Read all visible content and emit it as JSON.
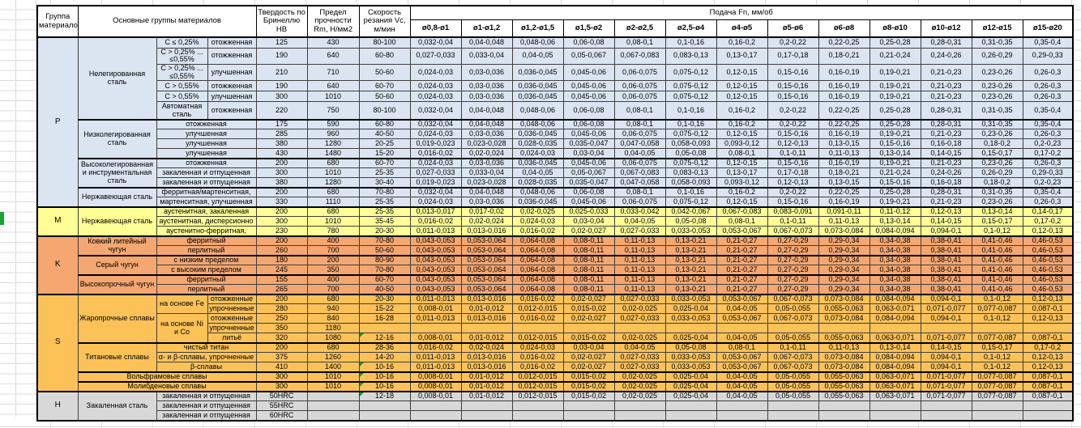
{
  "colors": {
    "groups": {
      "P": "#dbe5f1",
      "M": "#ffff96",
      "K": "#f4a770",
      "S": "#fcc258",
      "H": "#d8d8d8"
    },
    "comment_marker_green": "#0f9d2a",
    "left_gutter_green_fragment": "#18a335"
  },
  "table": {
    "header": {
      "col_group": "Группа материалов",
      "col_main": "Основные группы материалов",
      "col_hardness": "Твердость по Бринеллю НВ",
      "col_strength": "Предел прочности Rm, Н/мм2",
      "col_speed": "Скорость резания Vc, м/мин",
      "feed_title": "Подача Fn, мм/об",
      "feed_cols": [
        "ø0,8-ø1",
        "ø1-ø1,2",
        "ø1,2-ø1,5",
        "ø1,5-ø2",
        "ø2-ø2,5",
        "ø2,5-ø4",
        "ø4-ø5",
        "ø5-ø6",
        "ø6-ø8",
        "ø8-ø10",
        "ø10-ø12",
        "ø12-ø15",
        "ø15-ø20"
      ]
    },
    "feed_patterns": {
      "A": [
        "0,032-0,04",
        "0,04-0,048",
        "0,048-0,06",
        "0,06-0,08",
        "0,08-0,1",
        "0,1-0,16",
        "0,16-0,2",
        "0,2-0,22",
        "0,22-0,25",
        "0,25-0,28",
        "0,28-0,31",
        "0,31-0,35",
        "0,35-0,4"
      ],
      "B": [
        "0,027-0,033",
        "0,033-0,04",
        "0,04-0,05",
        "0,05-0,067",
        "0,067-0,083",
        "0,083-0,13",
        "0,13-0,17",
        "0,17-0,18",
        "0,18-0,21",
        "0,21-0,24",
        "0,24-0,26",
        "0,26-0,29",
        "0,29-0,33"
      ],
      "C": [
        "0,024-0,03",
        "0,03-0,036",
        "0,036-0,045",
        "0,045-0,06",
        "0,06-0,075",
        "0,075-0,12",
        "0,12-0,15",
        "0,15-0,16",
        "0,16-0,19",
        "0,19-0,21",
        "0,21-0,23",
        "0,23-0,26",
        "0,26-0,3"
      ],
      "D": [
        "0,019-0,023",
        "0,023-0,028",
        "0,028-0,035",
        "0,035-0,047",
        "0,047-0,058",
        "0,058-0,093",
        "0,093-0,12",
        "0,12-0,13",
        "0,13-0,15",
        "0,15-0,16",
        "0,16-0,18",
        "0,18-0,2",
        "0,2-0,23"
      ],
      "E": [
        "0,016-0,02",
        "0,02-0,024",
        "0,024-0,03",
        "0,03-0,04",
        "0,04-0,05",
        "0,05-0,08",
        "0,08-0,1",
        "0,1-0,11",
        "0,11-0,13",
        "0,13-0,14",
        "0,14-0,15",
        "0,15-0,17",
        "0,17-0,2"
      ],
      "F": [
        "0,013-0,017",
        "0,017-0,02",
        "0,02-0,025",
        "0,025-0,033",
        "0,033-0,042",
        "0,042-0,067",
        "0,067-0,083",
        "0,083-0,091",
        "0,091-0,11",
        "0,11-0,12",
        "0,12-0,13",
        "0,13-0,14",
        "0,14-0,17"
      ],
      "G": [
        "0,011-0,013",
        "0,013-0,016",
        "0,016-0,02",
        "0,02-0,027",
        "0,027-0,033",
        "0,033-0,053",
        "0,053-0,067",
        "0,067-0,073",
        "0,073-0,084",
        "0,084-0,094",
        "0,094-0,1",
        "0,1-0,12",
        "0,12-0,13"
      ],
      "H": [
        "0,043-0,053",
        "0,053-0,064",
        "0,064-0,08",
        "0,08-0,11",
        "0,11-0,13",
        "0,13-0,21",
        "0,21-0,27",
        "0,27-0,29",
        "0,29-0,34",
        "0,34-0,38",
        "0,38-0,41",
        "0,41-0,46",
        "0,46-0,53"
      ],
      "I": [
        "0,008-0,01",
        "0,01-0,012",
        "0,012-0,015",
        "0,015-0,02",
        "0,02-0,025",
        "0,025-0,04",
        "0,04-0,05",
        "0,05-0,055",
        "0,055-0,063",
        "0,063-0,071",
        "0,071-0,077",
        "0,077-0,087",
        "0,087-0,1"
      ],
      "X": [
        "",
        "",
        "",
        "",
        "",
        "",
        "",
        "",
        "",
        "",
        "",
        "",
        ""
      ]
    },
    "rows": [
      {
        "g": "P",
        "h": 13,
        "blk": true,
        "cells": [
          [
            "P",
            15,
            1,
            "cell-group-letter"
          ],
          [
            "Нелегированная сталь",
            6,
            1,
            "cell-subgroup"
          ],
          [
            "C ≤ 0,25%",
            1,
            1,
            "cell-variant"
          ],
          [
            "отожженная",
            1,
            1,
            "cell-state"
          ]
        ],
        "hb": "125",
        "rm": "430",
        "vc": "80-100",
        "feed": "A"
      },
      {
        "g": "P",
        "h": 18,
        "cells": [
          [
            "C > 0,25% ... ≤0,55%",
            1,
            1,
            "cell-variant"
          ],
          [
            "отожженная",
            1,
            1,
            "cell-state"
          ]
        ],
        "hb": "190",
        "rm": "640",
        "vc": "60-80",
        "feed": "B"
      },
      {
        "g": "P",
        "h": 18,
        "cells": [
          [
            "C > 0,25% ... ≤0,55%",
            1,
            1,
            "cell-variant"
          ],
          [
            "улучшенная",
            1,
            1,
            "cell-state"
          ]
        ],
        "hb": "210",
        "rm": "710",
        "vc": "50-60",
        "feed": "C"
      },
      {
        "g": "P",
        "h": 13,
        "cells": [
          [
            "C > 0,55%",
            1,
            1,
            "cell-variant"
          ],
          [
            "отожженная",
            1,
            1,
            "cell-state"
          ]
        ],
        "hb": "190",
        "rm": "640",
        "vc": "60-70",
        "feed": "C"
      },
      {
        "g": "P",
        "h": 13,
        "cells": [
          [
            "C > 0,55%",
            1,
            1,
            "cell-variant"
          ],
          [
            "улучшенная",
            1,
            1,
            "cell-state"
          ]
        ],
        "hb": "300",
        "rm": "1010",
        "vc": "50-60",
        "feed": "C"
      },
      {
        "g": "P",
        "h": 22,
        "cells": [
          [
            "Автоматная сталь",
            1,
            1,
            "cell-variant"
          ],
          [
            "отожженная",
            1,
            1,
            "cell-state"
          ]
        ],
        "hb": "220",
        "rm": "750",
        "vc": "80-100",
        "feed": "A"
      },
      {
        "g": "P",
        "h": 12,
        "blk": true,
        "cells": [
          [
            "Низколегированная сталь",
            4,
            1,
            "cell-subgroup"
          ],
          [
            "отожженная",
            1,
            2,
            "cell-state"
          ]
        ],
        "hb": "175",
        "rm": "590",
        "vc": "60-80",
        "feed": "A"
      },
      {
        "g": "P",
        "h": 12,
        "cells": [
          [
            "улучшенная",
            1,
            2,
            "cell-state"
          ]
        ],
        "hb": "285",
        "rm": "960",
        "vc": "40-50",
        "feed": "C"
      },
      {
        "g": "P",
        "h": 12,
        "cells": [
          [
            "улучшенная",
            1,
            2,
            "cell-state"
          ]
        ],
        "hb": "380",
        "rm": "1280",
        "vc": "20-25",
        "feed": "D"
      },
      {
        "g": "P",
        "h": 12,
        "cells": [
          [
            "улучшенная",
            1,
            2,
            "cell-state"
          ]
        ],
        "hb": "430",
        "rm": "1480",
        "vc": "15-20",
        "feed": "E"
      },
      {
        "g": "P",
        "h": 12,
        "blk": true,
        "cells": [
          [
            "Высоколегированная и инструментальная сталь",
            3,
            1,
            "cell-subgroup"
          ],
          [
            "отожженная",
            1,
            2,
            "cell-state"
          ]
        ],
        "hb": "200",
        "rm": "680",
        "vc": "60-70",
        "feed": "C"
      },
      {
        "g": "P",
        "h": 12,
        "cells": [
          [
            "закаленная и отпущенная",
            1,
            2,
            "cell-state"
          ]
        ],
        "hb": "300",
        "rm": "1010",
        "vc": "25-35",
        "feed": "B"
      },
      {
        "g": "P",
        "h": 12,
        "cells": [
          [
            "закаленная и отпущенная",
            1,
            2,
            "cell-state"
          ]
        ],
        "hb": "380",
        "rm": "1280",
        "vc": "30-40",
        "feed": "D"
      },
      {
        "g": "P",
        "h": 12,
        "blk": true,
        "cells": [
          [
            "Нержавеющая сталь",
            2,
            1,
            "cell-subgroup"
          ],
          [
            "ферритная/мартенситная,",
            1,
            2,
            "cell-state"
          ]
        ],
        "hb": "200",
        "rm": "680",
        "vc": "70-80",
        "feed": "A"
      },
      {
        "g": "P",
        "h": 12,
        "cells": [
          [
            "мартенситная, улучшенная",
            1,
            2,
            "cell-state"
          ]
        ],
        "hb": "330",
        "rm": "1110",
        "vc": "25-35",
        "feed": "C"
      },
      {
        "g": "M",
        "h": 12,
        "blk": true,
        "cells": [
          [
            "M",
            3,
            1,
            "cell-group-letter"
          ],
          [
            "Нержавеющая сталь",
            3,
            1,
            "cell-subgroup"
          ],
          [
            "аустенитная, закаленная",
            1,
            2,
            "cell-state"
          ]
        ],
        "hb": "200",
        "rm": "680",
        "vc": "25-35",
        "feed": "F"
      },
      {
        "g": "M",
        "h": 12,
        "cells": [
          [
            "аустенитная, дисперсионно",
            1,
            2,
            "cell-state"
          ]
        ],
        "hb": "300",
        "rm": "1010",
        "vc": "35-45",
        "feed": "E"
      },
      {
        "g": "M",
        "h": 12,
        "cells": [
          [
            "аустенитно-ферритная,",
            1,
            2,
            "cell-state"
          ]
        ],
        "hb": "230",
        "rm": "780",
        "vc": "20-30",
        "feed": "G"
      },
      {
        "g": "K",
        "h": 12,
        "blk": true,
        "cells": [
          [
            "K",
            6,
            1,
            "cell-group-letter"
          ],
          [
            "Ковкий литейный чугун",
            2,
            1,
            "cell-subgroup"
          ],
          [
            "ферритный",
            1,
            2,
            "cell-state"
          ]
        ],
        "hb": "200",
        "rm": "400",
        "vc": "70-80",
        "feed": "H"
      },
      {
        "g": "K",
        "h": 12,
        "cells": [
          [
            "перлитный",
            1,
            2,
            "cell-state"
          ]
        ],
        "hb": "260",
        "rm": "700",
        "vc": "50-60",
        "feed": "H"
      },
      {
        "g": "K",
        "h": 12,
        "blk": true,
        "cells": [
          [
            "Серый чугун",
            2,
            1,
            "cell-subgroup"
          ],
          [
            "с низким пределом",
            1,
            2,
            "cell-state"
          ]
        ],
        "hb": "180",
        "rm": "200",
        "vc": "80-90",
        "feed": "H"
      },
      {
        "g": "K",
        "h": 12,
        "cells": [
          [
            "с высоким пределом",
            1,
            2,
            "cell-state"
          ]
        ],
        "hb": "245",
        "rm": "350",
        "vc": "70-80",
        "feed": "H"
      },
      {
        "g": "K",
        "h": 12,
        "blk": true,
        "cells": [
          [
            "Высокопрочный чугун",
            2,
            1,
            "cell-subgroup"
          ],
          [
            "ферритный",
            1,
            2,
            "cell-state"
          ]
        ],
        "hb": "155",
        "rm": "400",
        "vc": "60-70",
        "feed": "H"
      },
      {
        "g": "K",
        "h": 12,
        "cells": [
          [
            "перлитный",
            1,
            2,
            "cell-state"
          ]
        ],
        "hb": "265",
        "rm": "700",
        "vc": "40-50",
        "feed": "H"
      },
      {
        "g": "S",
        "h": 12,
        "blk": true,
        "cells": [
          [
            "S",
            10,
            1,
            "cell-group-letter"
          ],
          [
            "Жаропрочные сплавы",
            5,
            1,
            "cell-subgroup"
          ],
          [
            "на основе Fe",
            2,
            1,
            "cell-variant"
          ],
          [
            "отожженные",
            1,
            1,
            "cell-state"
          ]
        ],
        "hb": "200",
        "rm": "680",
        "vc": "20-30",
        "feed": "G"
      },
      {
        "g": "S",
        "h": 12,
        "cells": [
          [
            "упрочненные",
            1,
            1,
            "cell-state"
          ]
        ],
        "hb": "280",
        "rm": "940",
        "vc": "15-22",
        "feed": "I"
      },
      {
        "g": "S",
        "h": 12,
        "cells": [
          [
            "на основе Ni и Co",
            3,
            1,
            "cell-variant"
          ],
          [
            "отожженные",
            1,
            1,
            "cell-state"
          ]
        ],
        "hb": "250",
        "rm": "840",
        "vc": "16-28",
        "feed": "G"
      },
      {
        "g": "S",
        "h": 12,
        "cells": [
          [
            "упрочненные",
            1,
            1,
            "cell-state"
          ]
        ],
        "hb": "350",
        "rm": "1180",
        "vc": "",
        "feed": "X"
      },
      {
        "g": "S",
        "h": 12,
        "cells": [
          [
            "литьё",
            1,
            1,
            "cell-state"
          ]
        ],
        "hb": "320",
        "rm": "1080",
        "vc": "12-16",
        "feed": "I",
        "mark": true
      },
      {
        "g": "S",
        "h": 12,
        "blk": true,
        "cells": [
          [
            "Титановые сплавы",
            3,
            1,
            "cell-subgroup"
          ],
          [
            "чистый титан",
            1,
            2,
            "cell-state"
          ]
        ],
        "hb": "200",
        "rm": "680",
        "vc": "28-36",
        "feed": "E"
      },
      {
        "g": "S",
        "h": 12,
        "cells": [
          [
            "α- и β-сплавы, упрочненные",
            1,
            2,
            "cell-state"
          ]
        ],
        "hb": "375",
        "rm": "1260",
        "vc": "14-20",
        "feed": "G"
      },
      {
        "g": "S",
        "h": 12,
        "cells": [
          [
            "β-сплавы",
            1,
            2,
            "cell-state"
          ]
        ],
        "hb": "410",
        "rm": "1400",
        "vc": "10-16",
        "feed": "G",
        "mark": true
      },
      {
        "g": "S",
        "h": 12,
        "blk": true,
        "cells": [
          [
            "Вольфрамовые сплавы",
            1,
            3,
            "cell-subgroup"
          ]
        ],
        "hb": "300",
        "rm": "1010",
        "vc": "10-16",
        "feed": "I",
        "mark": true
      },
      {
        "g": "S",
        "h": 12,
        "blk": true,
        "cells": [
          [
            "Молибденовые сплавы",
            1,
            3,
            "cell-subgroup"
          ]
        ],
        "hb": "300",
        "rm": "1010",
        "vc": "10-16",
        "feed": "I",
        "mark": true
      },
      {
        "g": "H",
        "h": 12,
        "blk": true,
        "cells": [
          [
            "H",
            3,
            1,
            "cell-group-letter"
          ],
          [
            "Закаленная сталь",
            3,
            1,
            "cell-subgroup"
          ],
          [
            "закаленная и отпущенная",
            1,
            2,
            "cell-state"
          ]
        ],
        "hb": "50HRC",
        "rm": "",
        "vc": "12-18",
        "feed": "I",
        "mark": true
      },
      {
        "g": "H",
        "h": 12,
        "cells": [
          [
            "закаленная и отпущенная",
            1,
            2,
            "cell-state"
          ]
        ],
        "hb": "55HRC",
        "rm": "",
        "vc": "",
        "feed": "X"
      },
      {
        "g": "H",
        "h": 12,
        "cells": [
          [
            "закаленная и отпущенная",
            1,
            2,
            "cell-state"
          ]
        ],
        "hb": "60HRC",
        "rm": "",
        "vc": "",
        "feed": "X"
      }
    ]
  }
}
